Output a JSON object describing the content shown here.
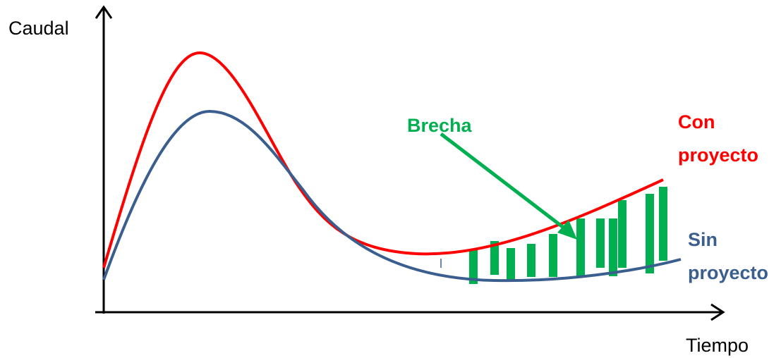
{
  "labels": {
    "y_axis": "Caudal",
    "x_axis": "Tiempo"
  },
  "annotations": {
    "brecha": "Brecha",
    "con_proyecto": [
      "Con",
      "proyecto"
    ],
    "sin_proyecto": [
      "Sin",
      "proyecto"
    ]
  }
}
